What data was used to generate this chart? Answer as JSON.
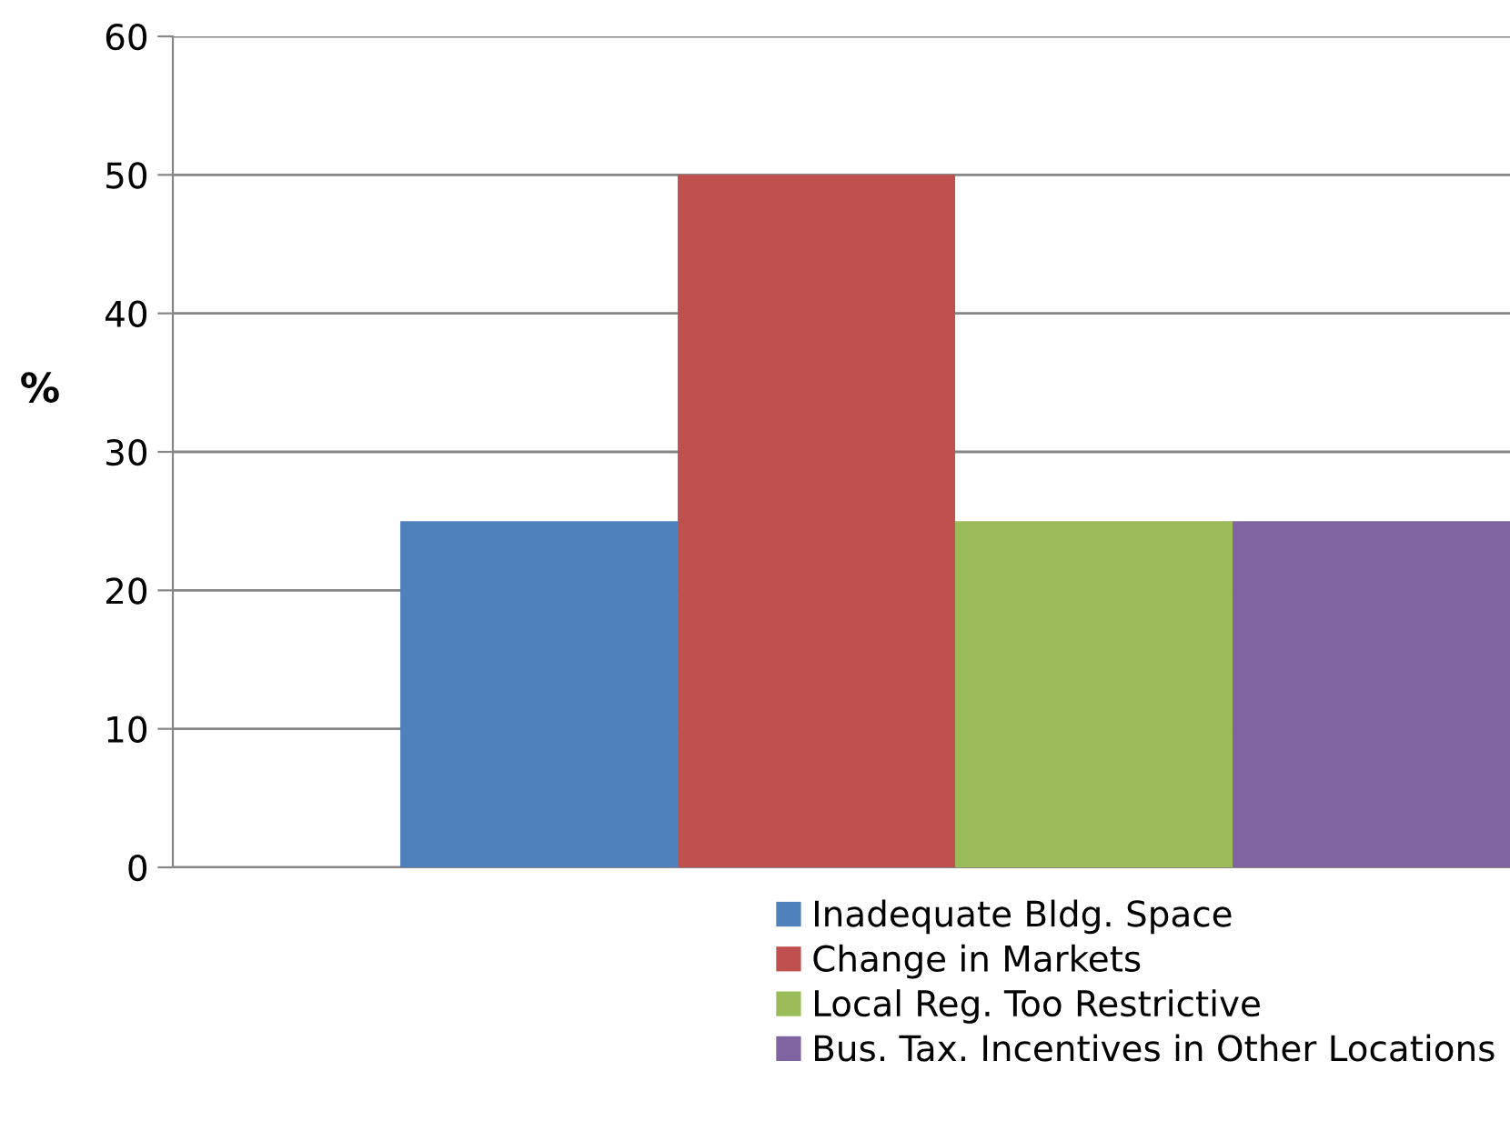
{
  "chart_data": {
    "type": "bar",
    "ylabel": "%",
    "categories": [
      null
    ],
    "series": [
      {
        "name": "Inadequate Bldg. Space",
        "color": "#4f81bd",
        "values": [
          25
        ]
      },
      {
        "name": "Change in Markets",
        "color": "#c0504d",
        "values": [
          50
        ]
      },
      {
        "name": "Local Reg. Too Restrictive",
        "color": "#9bbb59",
        "values": [
          25
        ]
      },
      {
        "name": "Bus. Tax. Incentives in Other Locations",
        "color": "#8064a2",
        "values": [
          25
        ]
      }
    ],
    "ylim": [
      0,
      60
    ],
    "yticks": [
      0,
      10,
      20,
      30,
      40,
      50,
      60
    ],
    "grid": "y",
    "legend": "bottom right"
  }
}
